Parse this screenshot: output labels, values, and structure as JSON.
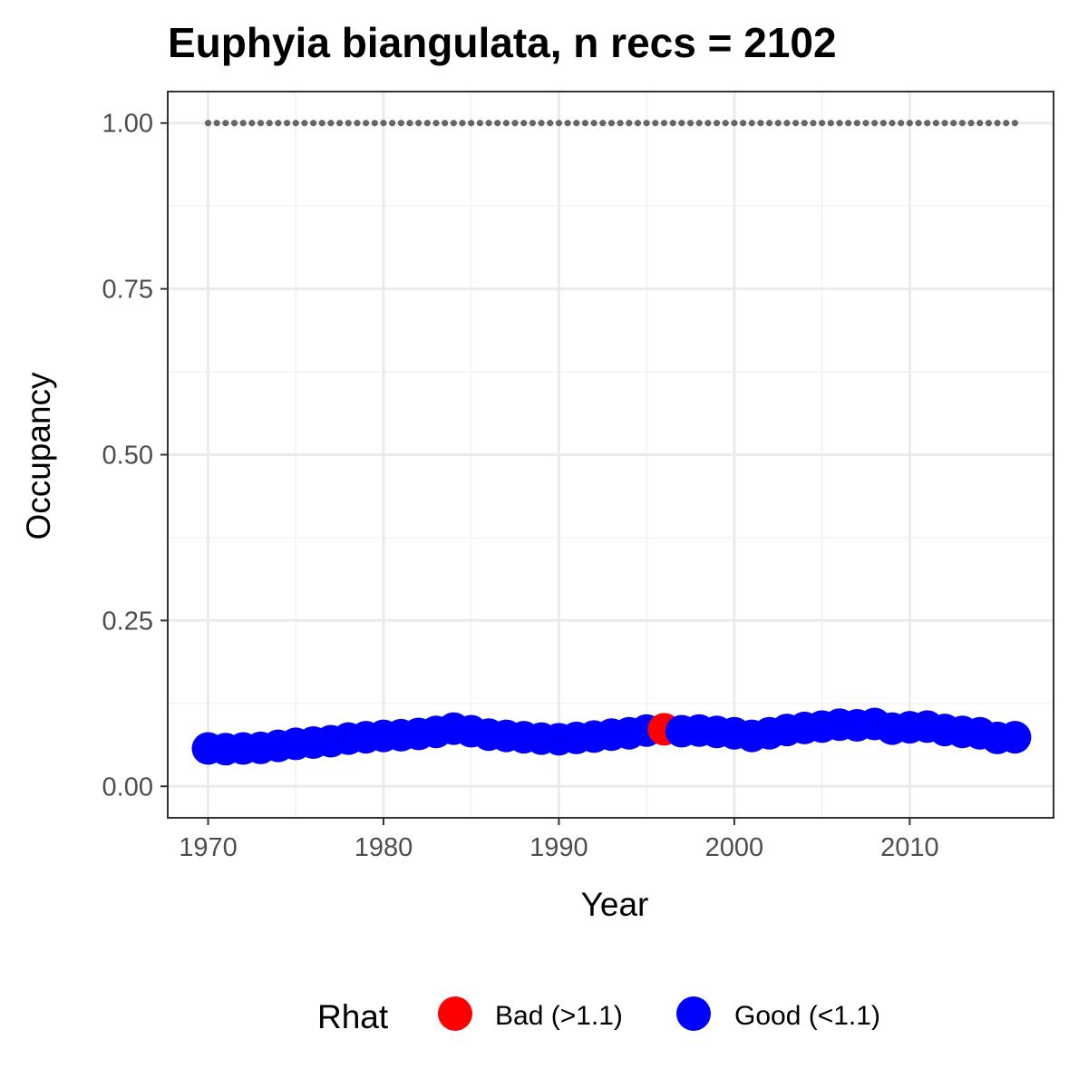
{
  "chart_data": {
    "type": "scatter",
    "title": "Euphyia biangulata, n recs = 2102",
    "xlabel": "Year",
    "ylabel": "Occupancy",
    "xlim": [
      1967.7,
      2018.2
    ],
    "ylim": [
      -0.0475,
      1.0475
    ],
    "x_ticks": [
      1970,
      1980,
      1990,
      2000,
      2010
    ],
    "x_tick_labels": [
      "1970",
      "1980",
      "1990",
      "2000",
      "2010"
    ],
    "y_ticks": [
      0,
      0.25,
      0.5,
      0.75,
      1.0
    ],
    "y_tick_labels": [
      "0.00",
      "0.25",
      "0.50",
      "0.75",
      "1.00"
    ],
    "grid": true,
    "legend": {
      "position": "bottom",
      "title": "Rhat",
      "entries": [
        {
          "label": "Bad (>1.1)",
          "color": "#ff0000"
        },
        {
          "label": "Good (<1.1)",
          "color": "#0000ff"
        }
      ]
    },
    "colors": {
      "bad": "#ff0000",
      "good": "#0000ff",
      "reference": "#666666"
    },
    "reference_line": {
      "y": 1.0,
      "style": "dotted"
    },
    "x": [
      1970,
      1971,
      1972,
      1973,
      1974,
      1975,
      1976,
      1977,
      1978,
      1979,
      1980,
      1981,
      1982,
      1983,
      1984,
      1985,
      1986,
      1987,
      1988,
      1989,
      1990,
      1991,
      1992,
      1993,
      1994,
      1995,
      1996,
      1997,
      1998,
      1999,
      2000,
      2001,
      2002,
      2003,
      2004,
      2005,
      2006,
      2007,
      2008,
      2009,
      2010,
      2011,
      2012,
      2013,
      2014,
      2015,
      2016
    ],
    "series": [
      {
        "values": [
          0.057,
          0.056,
          0.057,
          0.058,
          0.061,
          0.064,
          0.066,
          0.068,
          0.072,
          0.074,
          0.076,
          0.077,
          0.079,
          0.082,
          0.087,
          0.083,
          0.078,
          0.076,
          0.074,
          0.072,
          0.071,
          0.073,
          0.075,
          0.078,
          0.08,
          0.084,
          0.086,
          0.083,
          0.084,
          0.082,
          0.08,
          0.076,
          0.08,
          0.085,
          0.088,
          0.09,
          0.093,
          0.092,
          0.094,
          0.087,
          0.089,
          0.09,
          0.085,
          0.082,
          0.08,
          0.073,
          0.074
        ],
        "rhat_class": [
          "good",
          "good",
          "good",
          "good",
          "good",
          "good",
          "good",
          "good",
          "good",
          "good",
          "good",
          "good",
          "good",
          "good",
          "good",
          "good",
          "good",
          "good",
          "good",
          "good",
          "good",
          "good",
          "good",
          "good",
          "good",
          "good",
          "bad",
          "good",
          "good",
          "good",
          "good",
          "good",
          "good",
          "good",
          "good",
          "good",
          "good",
          "good",
          "good",
          "good",
          "good",
          "good",
          "good",
          "good",
          "good",
          "good",
          "good"
        ]
      }
    ]
  }
}
